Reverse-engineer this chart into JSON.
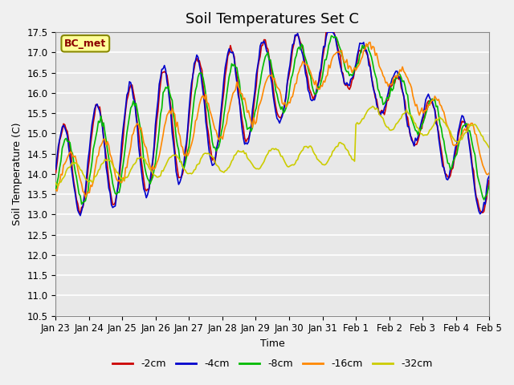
{
  "title": "Soil Temperatures Set C",
  "xlabel": "Time",
  "ylabel": "Soil Temperature (C)",
  "ylim": [
    10.5,
    17.5
  ],
  "xtick_labels": [
    "Jan 23",
    "Jan 24",
    "Jan 25",
    "Jan 26",
    "Jan 27",
    "Jan 28",
    "Jan 29",
    "Jan 30",
    "Jan 31",
    "Feb 1",
    "Feb 2",
    "Feb 3",
    "Feb 4",
    "Feb 5"
  ],
  "series_colors": {
    "2cm": "#cc0000",
    "4cm": "#0000cc",
    "8cm": "#00bb00",
    "16cm": "#ff8800",
    "32cm": "#cccc00"
  },
  "legend_label": "BC_met",
  "background_color": "#e8e8e8",
  "fig_background": "#f0f0f0",
  "grid_color": "#ffffff",
  "annotation_bg": "#ffff99",
  "annotation_border": "#888800"
}
